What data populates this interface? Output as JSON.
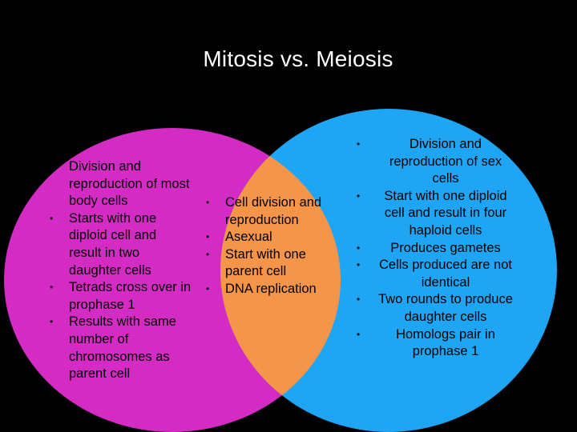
{
  "title": "Mitosis vs. Meiosis",
  "colors": {
    "background": "#000000",
    "mitosis_circle": "#D52BC5",
    "meiosis_circle": "#1EA6F5",
    "overlap": "#F5954A",
    "title_text": "#FFFFFF",
    "body_text": "#000000"
  },
  "mitosis": {
    "items": [
      "Division and reproduction of most body cells",
      " Starts with one diploid cell and result in two daughter cells",
      "Tetrads cross over in prophase 1",
      "Results with same number of chromosomes as parent cell"
    ]
  },
  "both": {
    "items": [
      "Cell division and reproduction",
      "Asexual",
      "Start with one parent cell",
      "DNA replication"
    ]
  },
  "meiosis": {
    "items": [
      "Division and reproduction of sex cells",
      "Start with one diploid cell and result in four haploid cells",
      "Produces gametes",
      "Cells produced are not identical",
      "Two rounds to produce daughter cells",
      "Homologs pair in prophase 1"
    ]
  }
}
